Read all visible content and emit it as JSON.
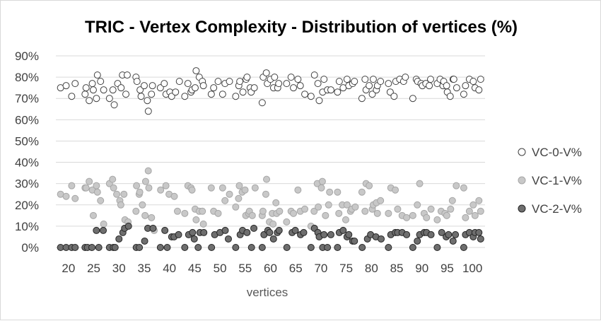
{
  "chart_data": {
    "type": "scatter",
    "title": "TRIC - Vertex Complexity - Distribution of vertices (%)",
    "xlabel": "vertices",
    "ylabel": "",
    "categories": [
      "20",
      "25",
      "30",
      "35",
      "40",
      "45",
      "50",
      "55",
      "60",
      "65",
      "70",
      "75",
      "80",
      "85",
      "90",
      "95",
      "100"
    ],
    "ylim": [
      0,
      90
    ],
    "yticks": [
      "0%",
      "10%",
      "20%",
      "30%",
      "40%",
      "50%",
      "60%",
      "70%",
      "80%",
      "90%"
    ],
    "grid": true,
    "legend_position": "right",
    "series": [
      {
        "name": "VC-0-V%",
        "color": "#ffffff",
        "stroke": "#404040",
        "values": [
          [
            75,
            76,
            71,
            77
          ],
          [
            72,
            75,
            69,
            77,
            74,
            70,
            81,
            78,
            74
          ],
          [
            70,
            74,
            67,
            77,
            75,
            81,
            72,
            81
          ],
          [
            80,
            78,
            74,
            71,
            76,
            69,
            64,
            72,
            76
          ],
          [
            75,
            77,
            72,
            73,
            71,
            73,
            78
          ],
          [
            71,
            77,
            73,
            74,
            75,
            83,
            80,
            78,
            76
          ],
          [
            72,
            75,
            78,
            72,
            77,
            78
          ],
          [
            71,
            76,
            78,
            73,
            79,
            80,
            75,
            73,
            75
          ],
          [
            68,
            80,
            82,
            77,
            79,
            75,
            80,
            75,
            77
          ],
          [
            77,
            80,
            75,
            79,
            76,
            72
          ],
          [
            71,
            81,
            77,
            69,
            73,
            79,
            74,
            74
          ],
          [
            73,
            78,
            75,
            79,
            76,
            77,
            78
          ],
          [
            70,
            79,
            74,
            76,
            72,
            79,
            74,
            76,
            78
          ],
          [
            77,
            73,
            71,
            78,
            79,
            78,
            80
          ],
          [
            70,
            79,
            78,
            77,
            76,
            77,
            76,
            79
          ],
          [
            77,
            79,
            76,
            78,
            76,
            73,
            71,
            79,
            79,
            75
          ],
          [
            72,
            76,
            79,
            78,
            75,
            74,
            79
          ]
        ]
      },
      {
        "name": "VC-1-V%",
        "color": "#c8c8c8",
        "stroke": "#a6a6a6",
        "values": [
          [
            25,
            24,
            29,
            23
          ],
          [
            28,
            28,
            31,
            27,
            15,
            29,
            26,
            22,
            11
          ],
          [
            30,
            32,
            28,
            25,
            22,
            20,
            25,
            13,
            12
          ],
          [
            17,
            29,
            25,
            26,
            20,
            15,
            31,
            36,
            28,
            14,
            8
          ],
          [
            27,
            29,
            25,
            24,
            17
          ],
          [
            16,
            29,
            28,
            27,
            18,
            13,
            17,
            17,
            11
          ],
          [
            28,
            17,
            16,
            28,
            22,
            25
          ],
          [
            19,
            23,
            29,
            26,
            27,
            15,
            16,
            17,
            15,
            28
          ],
          [
            15,
            17,
            25,
            32,
            12,
            16,
            11,
            21,
            16,
            17
          ],
          [
            12,
            17,
            16,
            27,
            17,
            18
          ],
          [
            10,
            17,
            30,
            19,
            28,
            31,
            15,
            20,
            26
          ],
          [
            26,
            16,
            20,
            13,
            20,
            17,
            18,
            19
          ],
          [
            26,
            17,
            30,
            29,
            18,
            20,
            21,
            16,
            22
          ],
          [
            16,
            28,
            27,
            18,
            15,
            14
          ],
          [
            15,
            20,
            30,
            16,
            14,
            18
          ],
          [
            13,
            17,
            16,
            15,
            18,
            22,
            29
          ],
          [
            28,
            14,
            17,
            20,
            15,
            22,
            17
          ]
        ]
      },
      {
        "name": "VC-2-V%",
        "color": "#6e6e6e",
        "stroke": "#262626",
        "values": [
          [
            0,
            0,
            0,
            0
          ],
          [
            0,
            0,
            0,
            8,
            0,
            8
          ],
          [
            0,
            0,
            0,
            4,
            7,
            9,
            10
          ],
          [
            0,
            0,
            3,
            9,
            9
          ],
          [
            0,
            8,
            0,
            5,
            5,
            6
          ],
          [
            0,
            6,
            7,
            4,
            0,
            7,
            7
          ],
          [
            0,
            6,
            7,
            8,
            4
          ],
          [
            0,
            6,
            8,
            7,
            0,
            9
          ],
          [
            0,
            6,
            8,
            7,
            4,
            7,
            8
          ],
          [
            0,
            7,
            8,
            6,
            7
          ],
          [
            0,
            9,
            7,
            5,
            0,
            6,
            0,
            6
          ],
          [
            0,
            7,
            8,
            5,
            6,
            3,
            3
          ],
          [
            0,
            4,
            6,
            5,
            4
          ],
          [
            0,
            6,
            7,
            7,
            7,
            6
          ],
          [
            0,
            3,
            6,
            7,
            7,
            6
          ],
          [
            0,
            7,
            5,
            6,
            3,
            6
          ],
          [
            0,
            6,
            7,
            5,
            7,
            7,
            4
          ]
        ]
      }
    ]
  }
}
